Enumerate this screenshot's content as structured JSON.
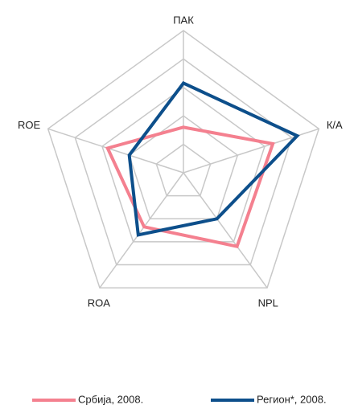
{
  "chart_data": {
    "type": "radar",
    "categories": [
      "ПАК",
      "К/А",
      "NPL",
      "ROA",
      "ROE"
    ],
    "rlim": [
      0,
      5
    ],
    "rticks": [
      1,
      2,
      3,
      4,
      5
    ],
    "grid": true,
    "legend": "bottom",
    "series": [
      {
        "name": "Србија, 2008.",
        "color": "#f4808f",
        "values": [
          1.6,
          3.3,
          3.2,
          2.35,
          2.8
        ]
      },
      {
        "name": "Регион*, 2008.",
        "color": "#0d4f8b",
        "values": [
          3.15,
          4.2,
          2.0,
          2.7,
          2.0
        ]
      }
    ]
  }
}
